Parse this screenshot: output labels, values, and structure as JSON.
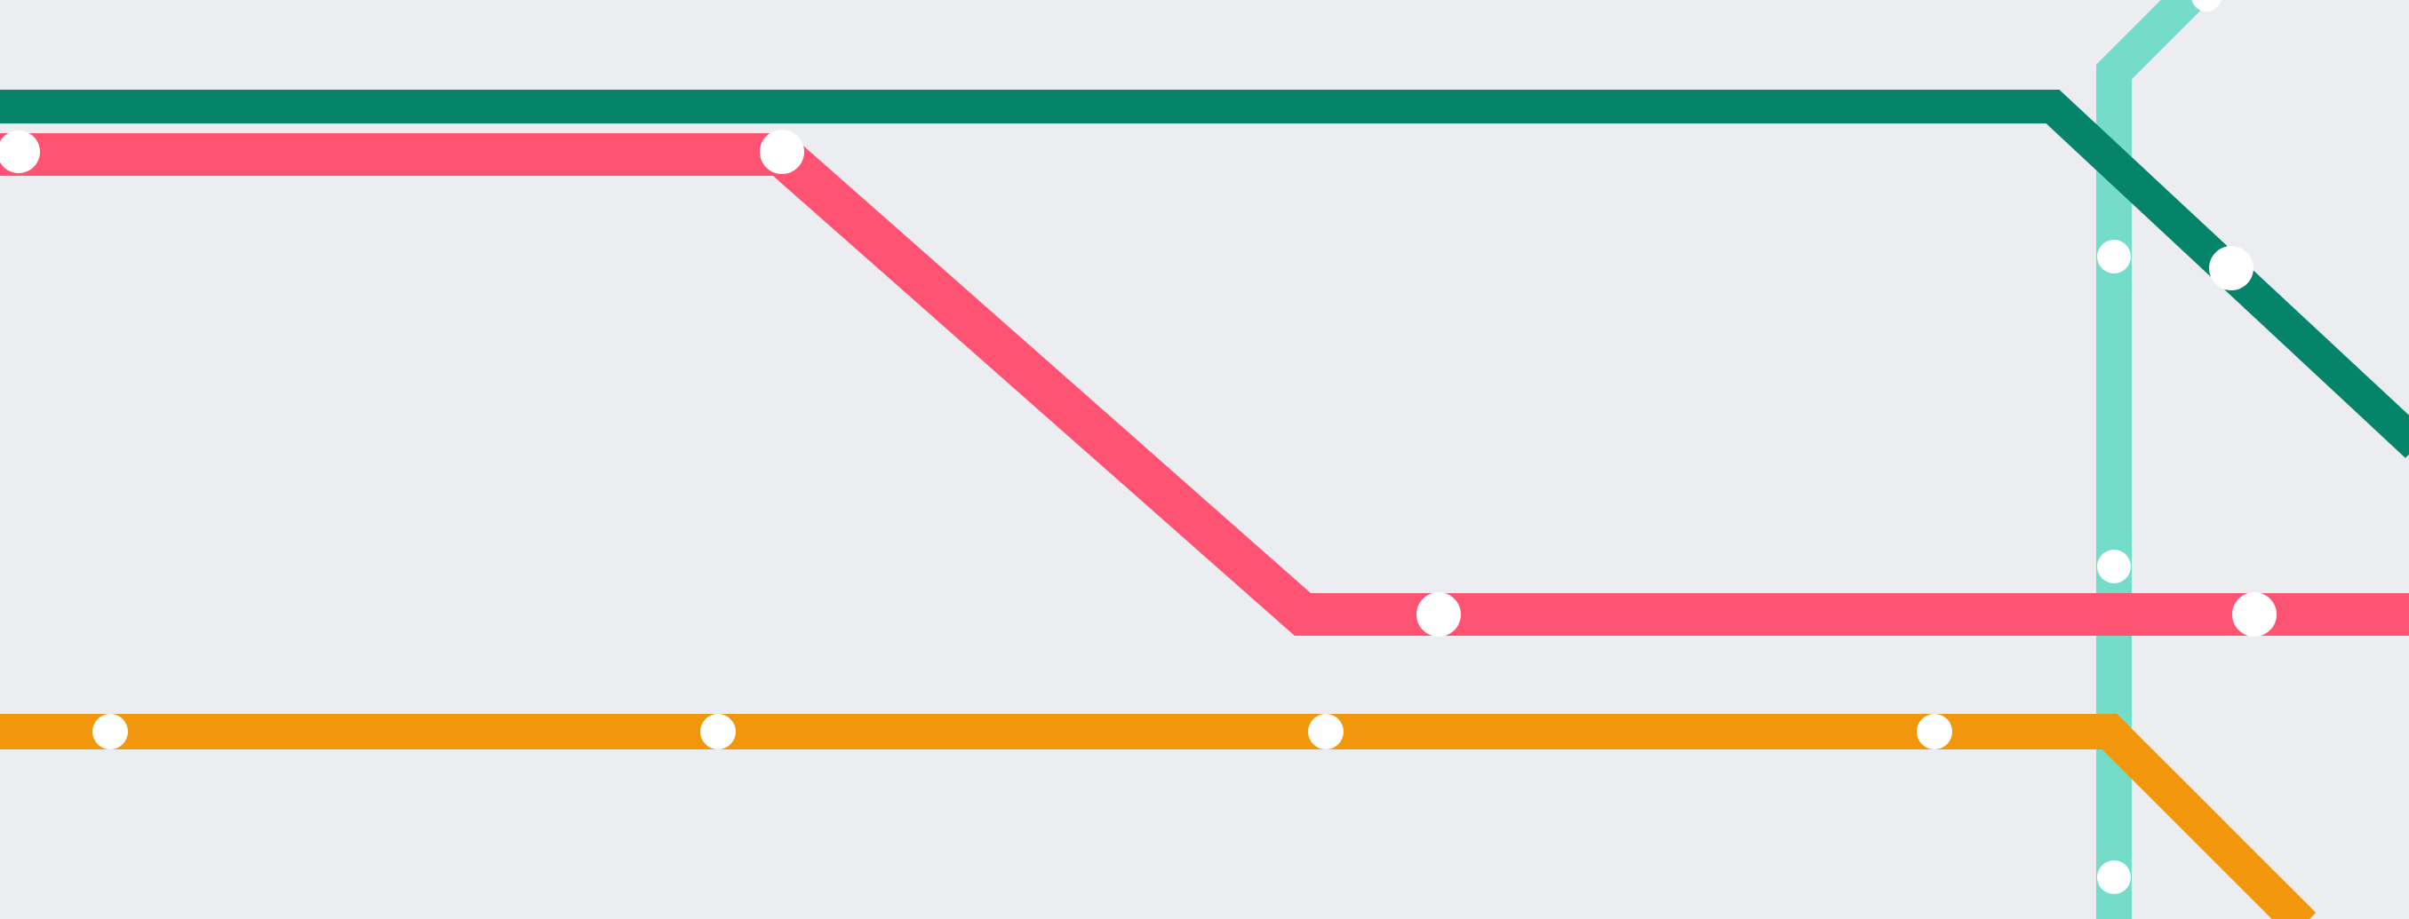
{
  "map": {
    "background_color": "#ECEDF1",
    "station_color": "#FFFFFF",
    "lines": [
      {
        "id": "teal-line",
        "color": "#74DCC8"
      },
      {
        "id": "green-line",
        "color": "#06846A"
      },
      {
        "id": "red-line",
        "color": "#FF5374"
      },
      {
        "id": "orange-line",
        "color": "#F2960C"
      }
    ]
  }
}
